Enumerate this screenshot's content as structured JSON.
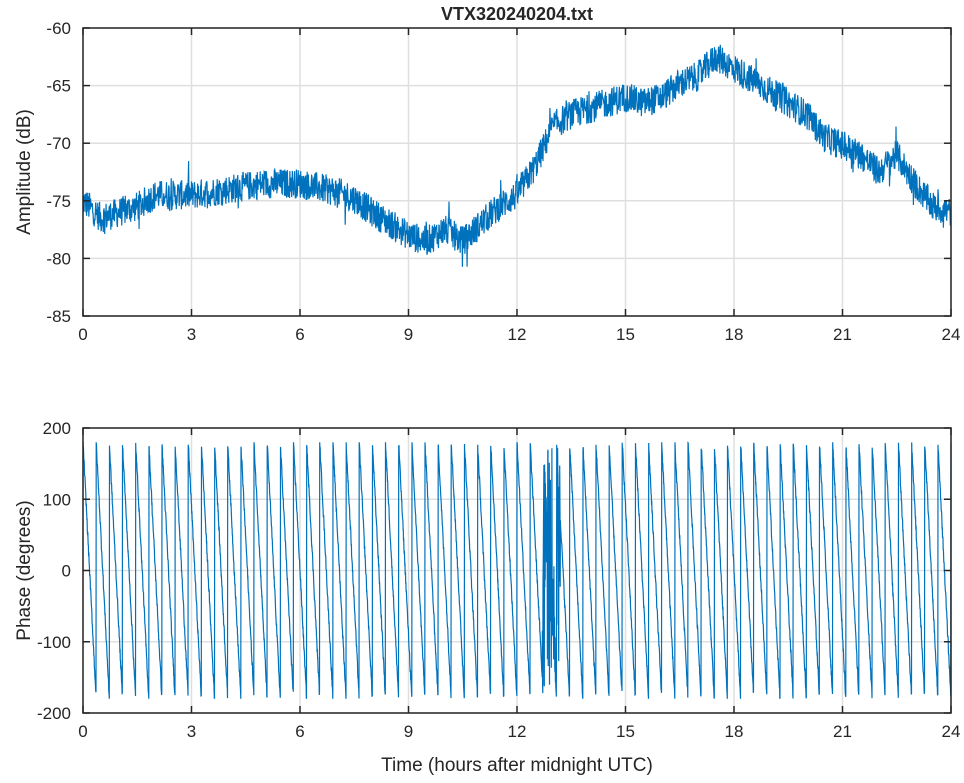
{
  "chart_data": [
    {
      "type": "line",
      "title": "VTX320240204.txt",
      "xlabel": "",
      "ylabel": "Amplitude (dB)",
      "xlim": [
        0,
        24
      ],
      "ylim": [
        -85,
        -60
      ],
      "xticks": [
        0,
        3,
        6,
        9,
        12,
        15,
        18,
        21,
        24
      ],
      "yticks": [
        -60,
        -65,
        -70,
        -75,
        -80,
        -85
      ],
      "grid": true,
      "color": "#0072BD",
      "noise_band_db": 1.3,
      "series": [
        {
          "name": "Amplitude",
          "x": [
            0,
            0.5,
            1,
            1.5,
            2,
            3,
            4,
            5,
            6,
            7,
            7.5,
            8,
            8.5,
            9,
            9.5,
            10,
            10.5,
            11,
            11.5,
            12,
            12.5,
            13,
            13.5,
            14,
            15,
            15.5,
            16,
            16.5,
            17,
            17.5,
            18,
            18.5,
            19,
            19.5,
            20,
            20.5,
            21,
            21.5,
            22,
            22.5,
            23,
            23.5,
            24
          ],
          "y": [
            -75,
            -76.5,
            -76,
            -75.5,
            -74.5,
            -74.5,
            -74,
            -73.5,
            -73.5,
            -74.2,
            -74.8,
            -76,
            -77,
            -78,
            -78.5,
            -77.5,
            -78.5,
            -77,
            -75.5,
            -74.5,
            -72,
            -68.5,
            -67.5,
            -67,
            -66,
            -66.5,
            -66,
            -64.8,
            -64.2,
            -62.5,
            -63.5,
            -64.5,
            -65.5,
            -66.5,
            -67.5,
            -69.5,
            -70.2,
            -71,
            -72.5,
            -71,
            -73.5,
            -75.5,
            -76
          ]
        }
      ]
    },
    {
      "type": "line",
      "title": "",
      "xlabel": "Time (hours after midnight UTC)",
      "ylabel": "Phase (degrees)",
      "xlim": [
        0,
        24
      ],
      "ylim": [
        -200,
        200
      ],
      "xticks": [
        0,
        3,
        6,
        9,
        12,
        15,
        18,
        21,
        24
      ],
      "yticks": [
        200,
        100,
        0,
        -100,
        -200
      ],
      "grid": true,
      "color": "#0072BD",
      "series": [
        {
          "name": "Phase",
          "form": "sawtooth wrapping from 180 to -180",
          "wrap_range": [
            -180,
            180
          ],
          "cycles_per_hour": 2.75
        }
      ]
    }
  ]
}
